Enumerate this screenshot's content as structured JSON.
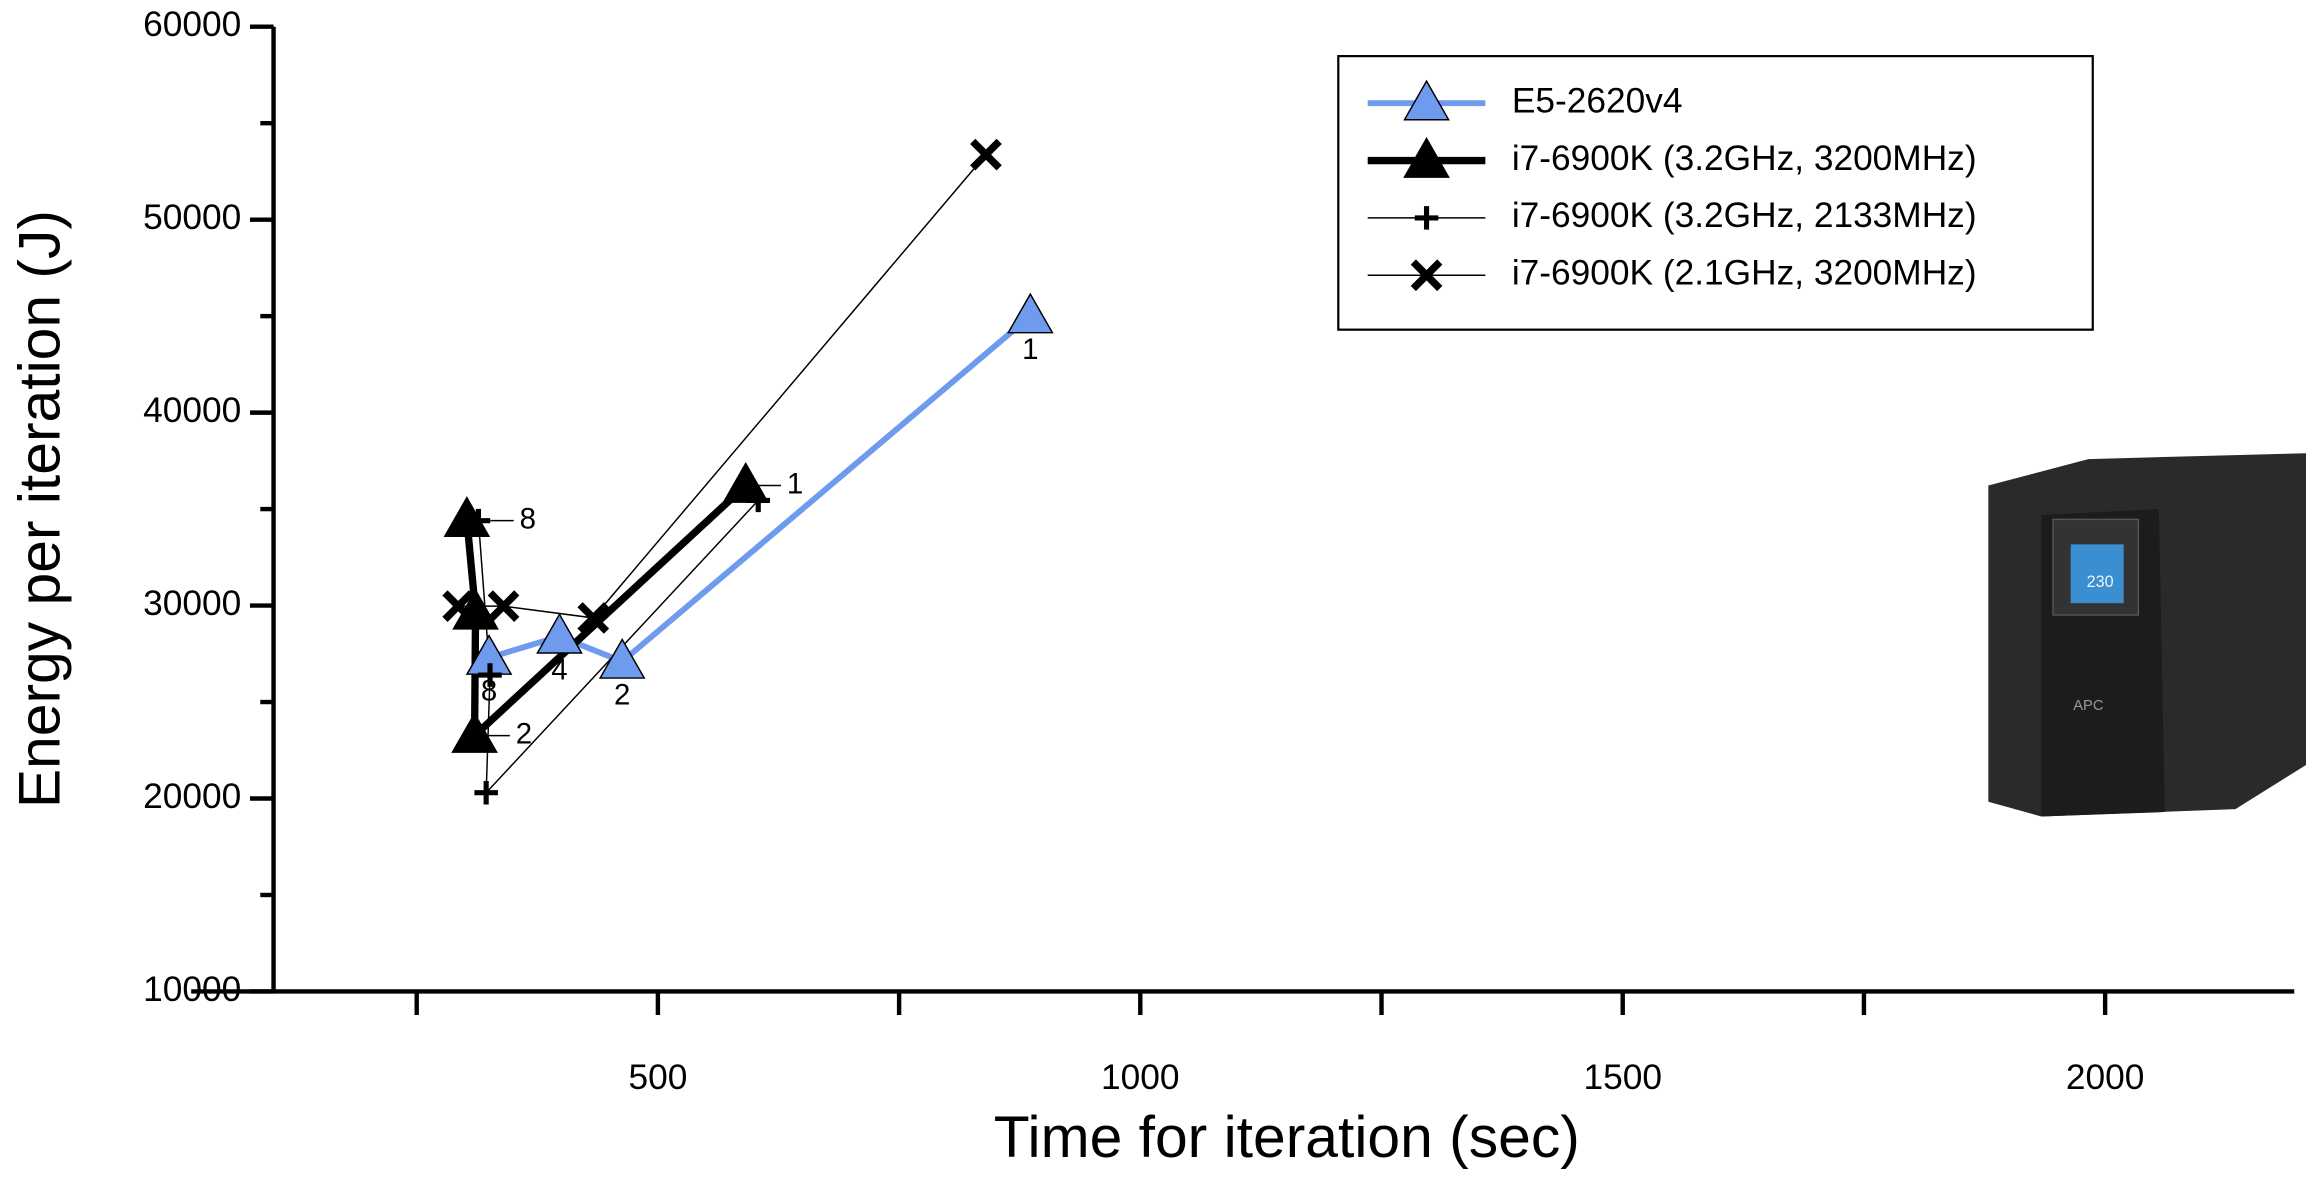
{
  "chart_data": {
    "type": "line",
    "x_label": "Time for iteration (sec)",
    "y_label": "Energy per iteration (J)",
    "xlim": [
      62,
      2196
    ],
    "xticks": [
      500,
      1000,
      1500,
      2000
    ],
    "xminorticks": [
      250,
      750,
      1250,
      1750
    ],
    "ylim": [
      10000,
      60000
    ],
    "yticks": [
      10000,
      20000,
      30000,
      40000,
      50000,
      60000
    ],
    "yminorticks": [
      15000,
      25000,
      35000,
      45000,
      55000
    ],
    "legend": "upper-right",
    "series": [
      {
        "name": "E5-2620v4",
        "color": "#6f9bee",
        "marker": "triangle",
        "marker_fill": "#6f9bee",
        "line_width": 4,
        "x": [
          325,
          398,
          463,
          886
        ],
        "values": [
          27300,
          28400,
          27100,
          45000
        ],
        "point_labels": [
          "8",
          "4",
          "2",
          "1"
        ]
      },
      {
        "name": "i7-6900K (3.2GHz, 3200MHz)",
        "color": "#000000",
        "marker": "triangle",
        "marker_fill": "#000000",
        "line_width": 5,
        "x": [
          302,
          311,
          310,
          591
        ],
        "values": [
          34450,
          29650,
          23260,
          36220
        ],
        "point_labels": [
          null,
          null,
          "2",
          "1"
        ]
      },
      {
        "name": "i7-6900K (3.2GHz, 2133MHz)",
        "color": "#000000",
        "marker": "plus",
        "marker_fill": "#000000",
        "line_width": 1,
        "x": [
          314,
          326,
          322,
          604
        ],
        "values": [
          34400,
          26400,
          20300,
          35450
        ],
        "point_labels": [
          "8",
          null,
          null,
          null
        ]
      },
      {
        "name": "i7-6900K (2.1GHz, 3200MHz)",
        "color": "#000000",
        "marker": "cross",
        "marker_fill": "#000000",
        "line_width": 1,
        "x": [
          293,
          340,
          433,
          840
        ],
        "values": [
          29970,
          29970,
          29360,
          53370
        ],
        "point_labels": [
          null,
          null,
          null,
          null
        ]
      }
    ]
  }
}
